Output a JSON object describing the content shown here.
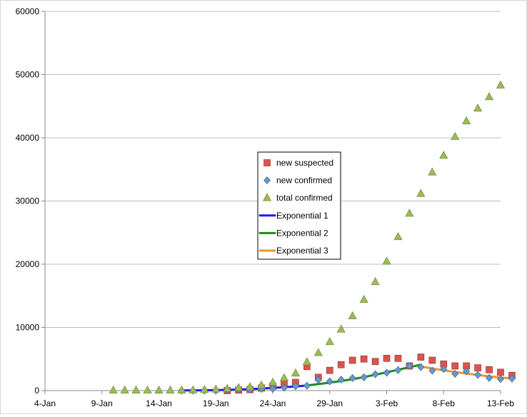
{
  "chart_data": {
    "type": "scatter",
    "title": "",
    "xlabel": "",
    "ylabel": "",
    "x_ticks": [
      "4-Jan",
      "9-Jan",
      "14-Jan",
      "19-Jan",
      "24-Jan",
      "29-Jan",
      "3-Feb",
      "8-Feb",
      "13-Feb"
    ],
    "y_ticks": [
      "0",
      "10000",
      "20000",
      "30000",
      "40000",
      "50000",
      "60000"
    ],
    "xlim": [
      "2020-01-04",
      "2020-02-13"
    ],
    "ylim": [
      0,
      60000
    ],
    "grid": "horizontal",
    "legend_position": "center",
    "series": [
      {
        "name": "new suspected",
        "kind": "scatter",
        "marker": "square",
        "color": "#d9534f",
        "points": [
          [
            "2020-01-20",
            0
          ],
          [
            "2020-01-21",
            80
          ],
          [
            "2020-01-22",
            150
          ],
          [
            "2020-01-23",
            400
          ],
          [
            "2020-01-24",
            700
          ],
          [
            "2020-01-25",
            1100
          ],
          [
            "2020-01-26",
            1300
          ],
          [
            "2020-01-27",
            3800
          ],
          [
            "2020-01-28",
            2100
          ],
          [
            "2020-01-29",
            3200
          ],
          [
            "2020-01-30",
            4100
          ],
          [
            "2020-01-31",
            4800
          ],
          [
            "2020-02-01",
            5000
          ],
          [
            "2020-02-02",
            4600
          ],
          [
            "2020-02-03",
            5100
          ],
          [
            "2020-02-04",
            5100
          ],
          [
            "2020-02-05",
            3900
          ],
          [
            "2020-02-06",
            5300
          ],
          [
            "2020-02-07",
            4800
          ],
          [
            "2020-02-08",
            4200
          ],
          [
            "2020-02-09",
            3900
          ],
          [
            "2020-02-10",
            3900
          ],
          [
            "2020-02-11",
            3600
          ],
          [
            "2020-02-12",
            3300
          ],
          [
            "2020-02-13",
            2900
          ],
          [
            "2020-02-14",
            2400
          ]
        ]
      },
      {
        "name": "new confirmed",
        "kind": "scatter",
        "marker": "diamond",
        "color": "#6699cc",
        "points": [
          [
            "2020-01-16",
            0
          ],
          [
            "2020-01-17",
            0
          ],
          [
            "2020-01-18",
            0
          ],
          [
            "2020-01-19",
            0
          ],
          [
            "2020-01-20",
            80
          ],
          [
            "2020-01-21",
            150
          ],
          [
            "2020-01-22",
            150
          ],
          [
            "2020-01-23",
            250
          ],
          [
            "2020-01-24",
            280
          ],
          [
            "2020-01-25",
            450
          ],
          [
            "2020-01-26",
            690
          ],
          [
            "2020-01-27",
            770
          ],
          [
            "2020-01-28",
            1700
          ],
          [
            "2020-01-29",
            1460
          ],
          [
            "2020-01-30",
            1740
          ],
          [
            "2020-01-31",
            1980
          ],
          [
            "2020-02-01",
            2100
          ],
          [
            "2020-02-02",
            2590
          ],
          [
            "2020-02-03",
            2830
          ],
          [
            "2020-02-04",
            3240
          ],
          [
            "2020-02-05",
            3890
          ],
          [
            "2020-02-06",
            3700
          ],
          [
            "2020-02-07",
            3150
          ],
          [
            "2020-02-08",
            3400
          ],
          [
            "2020-02-09",
            2650
          ],
          [
            "2020-02-10",
            3060
          ],
          [
            "2020-02-11",
            2480
          ],
          [
            "2020-02-12",
            2010
          ],
          [
            "2020-02-13",
            1820
          ],
          [
            "2020-02-14",
            1900
          ]
        ]
      },
      {
        "name": "total confirmed",
        "kind": "scatter",
        "marker": "triangle",
        "color": "#9bbb59",
        "points": [
          [
            "2020-01-10",
            41
          ],
          [
            "2020-01-11",
            41
          ],
          [
            "2020-01-12",
            41
          ],
          [
            "2020-01-13",
            41
          ],
          [
            "2020-01-14",
            41
          ],
          [
            "2020-01-15",
            41
          ],
          [
            "2020-01-16",
            45
          ],
          [
            "2020-01-17",
            62
          ],
          [
            "2020-01-18",
            121
          ],
          [
            "2020-01-19",
            198
          ],
          [
            "2020-01-20",
            291
          ],
          [
            "2020-01-21",
            440
          ],
          [
            "2020-01-22",
            571
          ],
          [
            "2020-01-23",
            830
          ],
          [
            "2020-01-24",
            1287
          ],
          [
            "2020-01-25",
            1975
          ],
          [
            "2020-01-26",
            2744
          ],
          [
            "2020-01-27",
            4515
          ],
          [
            "2020-01-28",
            5974
          ],
          [
            "2020-01-29",
            7711
          ],
          [
            "2020-01-30",
            9692
          ],
          [
            "2020-01-31",
            11791
          ],
          [
            "2020-02-01",
            14380
          ],
          [
            "2020-02-02",
            17205
          ],
          [
            "2020-02-03",
            20438
          ],
          [
            "2020-02-04",
            24324
          ],
          [
            "2020-02-05",
            28018
          ],
          [
            "2020-02-06",
            31161
          ],
          [
            "2020-02-07",
            34546
          ],
          [
            "2020-02-08",
            37198
          ],
          [
            "2020-02-09",
            40171
          ],
          [
            "2020-02-10",
            42638
          ],
          [
            "2020-02-11",
            44653
          ],
          [
            "2020-02-12",
            46472
          ],
          [
            "2020-02-13",
            48315
          ]
        ]
      },
      {
        "name": "Exponential 1",
        "kind": "line",
        "color": "#1a1aff",
        "points": [
          [
            "2020-01-16",
            20
          ],
          [
            "2020-01-18",
            50
          ],
          [
            "2020-01-20",
            110
          ],
          [
            "2020-01-22",
            230
          ],
          [
            "2020-01-24",
            420
          ],
          [
            "2020-01-26",
            650
          ],
          [
            "2020-01-27",
            800
          ]
        ]
      },
      {
        "name": "Exponential 2",
        "kind": "line",
        "color": "#1e8c1e",
        "points": [
          [
            "2020-01-27",
            800
          ],
          [
            "2020-01-29",
            1250
          ],
          [
            "2020-01-31",
            1800
          ],
          [
            "2020-02-02",
            2500
          ],
          [
            "2020-02-04",
            3300
          ],
          [
            "2020-02-06",
            4100
          ]
        ]
      },
      {
        "name": "Exponential 3",
        "kind": "line",
        "color": "#f0922b",
        "points": [
          [
            "2020-02-06",
            3800
          ],
          [
            "2020-02-08",
            3200
          ],
          [
            "2020-02-10",
            2700
          ],
          [
            "2020-02-12",
            2250
          ],
          [
            "2020-02-14",
            1900
          ]
        ]
      }
    ]
  }
}
